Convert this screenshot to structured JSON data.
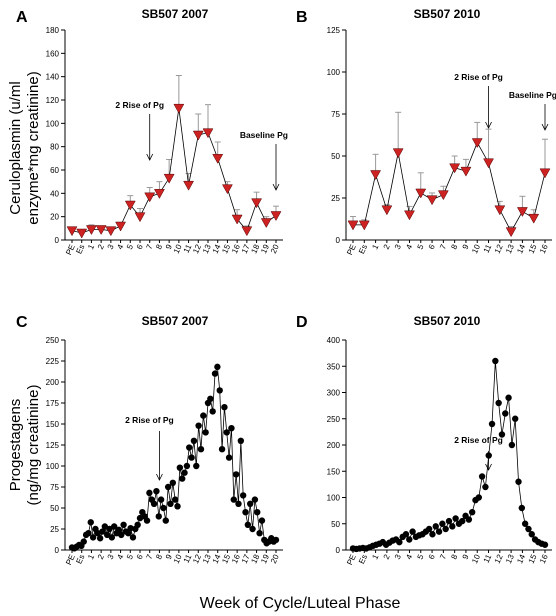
{
  "figure": {
    "ylabel_top_1": "Ceruloplasmin (u/ml",
    "ylabel_top_2": "enzyme*mg creatinine)",
    "ylabel_bottom_1": "Progestagens",
    "ylabel_bottom_2": "(ng/mg creatinine)",
    "xlabel": "Week of Cycle/Luteal Phase",
    "colors": {
      "triangle": "#cc2222",
      "point": "#000000",
      "error_bar": "#999999",
      "line": "#000000"
    }
  },
  "chart_data": [
    {
      "panel": "A",
      "type": "line",
      "title": "SB507 2007",
      "categories": [
        "PE",
        "Es",
        "1",
        "2",
        "3",
        "4",
        "5",
        "6",
        "7",
        "8",
        "9",
        "10",
        "11",
        "12",
        "13",
        "14",
        "15",
        "16",
        "17",
        "18",
        "19",
        "20"
      ],
      "values": [
        8,
        6,
        9,
        9,
        8,
        12,
        30,
        20,
        37,
        40,
        53,
        113,
        47,
        90,
        92,
        70,
        44,
        18,
        8,
        32,
        15,
        21
      ],
      "errors": [
        2,
        2,
        4,
        3,
        3,
        3,
        8,
        7,
        8,
        10,
        16,
        28,
        10,
        18,
        24,
        14,
        6,
        8,
        4,
        9,
        5,
        8
      ],
      "ylim": [
        0,
        180
      ],
      "yticks": [
        0,
        20,
        40,
        60,
        80,
        100,
        120,
        140,
        160,
        180
      ],
      "annotations": [
        {
          "text": "2 Rise of Pg",
          "x": "7"
        },
        {
          "text": "Baseline Pg",
          "x": "20"
        }
      ]
    },
    {
      "panel": "B",
      "type": "line",
      "title": "SB507 2010",
      "categories": [
        "PE",
        "Es",
        "1",
        "2",
        "3",
        "4",
        "5",
        "6",
        "7",
        "8",
        "9",
        "10",
        "11",
        "12",
        "13",
        "14",
        "15",
        "16"
      ],
      "values": [
        9,
        9,
        39,
        18,
        52,
        15,
        28,
        24,
        27,
        43,
        41,
        58,
        46,
        18,
        5,
        17,
        13,
        40
      ],
      "errors": [
        5,
        3,
        12,
        3,
        24,
        5,
        12,
        4,
        5,
        7,
        7,
        12,
        20,
        5,
        3,
        9,
        5,
        20
      ],
      "ylim": [
        0,
        125
      ],
      "yticks": [
        0,
        25,
        50,
        75,
        100,
        125
      ],
      "annotations": [
        {
          "text": "2 Rise of Pg",
          "x": "11"
        },
        {
          "text": "Baseline Pg",
          "x": "16"
        }
      ]
    },
    {
      "panel": "C",
      "type": "line",
      "title": "SB507 2007",
      "categories": [
        "PE",
        "Es",
        "1",
        "2",
        "3",
        "4",
        "5",
        "6",
        "7",
        "8",
        "9",
        "10",
        "11",
        "12",
        "13",
        "14",
        "15",
        "16",
        "17",
        "18",
        "19",
        "20"
      ],
      "series_points": [
        [
          0.0,
          3
        ],
        [
          0.3,
          2
        ],
        [
          0.6,
          4
        ],
        [
          0.9,
          6
        ],
        [
          1.2,
          5
        ],
        [
          1.5,
          10
        ],
        [
          1.8,
          18
        ],
        [
          2.1,
          20
        ],
        [
          2.4,
          33
        ],
        [
          2.7,
          15
        ],
        [
          3.0,
          25
        ],
        [
          3.3,
          20
        ],
        [
          3.6,
          14
        ],
        [
          3.9,
          22
        ],
        [
          4.2,
          28
        ],
        [
          4.5,
          18
        ],
        [
          4.8,
          25
        ],
        [
          5.1,
          15
        ],
        [
          5.4,
          28
        ],
        [
          5.7,
          20
        ],
        [
          6.0,
          24
        ],
        [
          6.3,
          18
        ],
        [
          6.6,
          30
        ],
        [
          6.9,
          22
        ],
        [
          7.2,
          20
        ],
        [
          7.5,
          26
        ],
        [
          7.8,
          15
        ],
        [
          8.1,
          25
        ],
        [
          8.4,
          30
        ],
        [
          8.7,
          38
        ],
        [
          9.0,
          45
        ],
        [
          9.3,
          40
        ],
        [
          9.6,
          35
        ],
        [
          9.9,
          68
        ],
        [
          10.2,
          60
        ],
        [
          10.5,
          55
        ],
        [
          10.8,
          70
        ],
        [
          11.1,
          40
        ],
        [
          11.4,
          60
        ],
        [
          11.7,
          50
        ],
        [
          12.0,
          35
        ],
        [
          12.3,
          75
        ],
        [
          12.6,
          55
        ],
        [
          12.9,
          80
        ],
        [
          13.2,
          60
        ],
        [
          13.5,
          52
        ],
        [
          13.8,
          98
        ],
        [
          14.1,
          85
        ],
        [
          14.4,
          92
        ],
        [
          14.7,
          100
        ],
        [
          15.0,
          122
        ],
        [
          15.3,
          110
        ],
        [
          15.6,
          130
        ],
        [
          15.9,
          100
        ],
        [
          16.2,
          148
        ],
        [
          16.5,
          120
        ],
        [
          16.8,
          160
        ],
        [
          17.1,
          140
        ],
        [
          17.4,
          175
        ],
        [
          17.7,
          180
        ],
        [
          18.0,
          165
        ],
        [
          18.3,
          210
        ],
        [
          18.6,
          218
        ],
        [
          18.9,
          190
        ],
        [
          19.2,
          120
        ],
        [
          19.5,
          170
        ],
        [
          19.8,
          140
        ],
        [
          20.1,
          110
        ],
        [
          20.4,
          145
        ],
        [
          20.7,
          60
        ],
        [
          21.0,
          90
        ],
        [
          21.3,
          55
        ],
        [
          21.6,
          130
        ],
        [
          21.9,
          65
        ],
        [
          22.2,
          45
        ],
        [
          22.5,
          30
        ],
        [
          22.8,
          55
        ],
        [
          23.1,
          25
        ],
        [
          23.4,
          60
        ],
        [
          23.7,
          45
        ],
        [
          24.0,
          20
        ],
        [
          24.3,
          35
        ],
        [
          24.6,
          12
        ],
        [
          24.9,
          8
        ],
        [
          25.2,
          10
        ],
        [
          25.5,
          14
        ],
        [
          25.8,
          10
        ],
        [
          26.1,
          12
        ]
      ],
      "ylim": [
        0,
        250
      ],
      "yticks": [
        0,
        25,
        50,
        75,
        100,
        125,
        150,
        175,
        200,
        225,
        250
      ],
      "annotations": [
        {
          "text": "2 Rise of Pg",
          "x": "8"
        }
      ]
    },
    {
      "panel": "D",
      "type": "line",
      "title": "SB507 2010",
      "categories": [
        "PE",
        "Es",
        "1",
        "2",
        "3",
        "4",
        "5",
        "6",
        "7",
        "8",
        "9",
        "10",
        "11",
        "12",
        "13",
        "14",
        "15",
        "16"
      ],
      "series_points": [
        [
          0.0,
          3
        ],
        [
          0.3,
          2
        ],
        [
          0.6,
          3
        ],
        [
          0.9,
          4
        ],
        [
          1.2,
          3
        ],
        [
          1.5,
          5
        ],
        [
          1.8,
          8
        ],
        [
          2.1,
          10
        ],
        [
          2.4,
          12
        ],
        [
          2.7,
          15
        ],
        [
          3.0,
          10
        ],
        [
          3.3,
          14
        ],
        [
          3.6,
          18
        ],
        [
          3.9,
          20
        ],
        [
          4.2,
          15
        ],
        [
          4.5,
          25
        ],
        [
          4.8,
          30
        ],
        [
          5.1,
          20
        ],
        [
          5.4,
          35
        ],
        [
          5.7,
          25
        ],
        [
          6.0,
          28
        ],
        [
          6.3,
          30
        ],
        [
          6.6,
          35
        ],
        [
          6.9,
          40
        ],
        [
          7.2,
          30
        ],
        [
          7.5,
          45
        ],
        [
          7.8,
          35
        ],
        [
          8.1,
          50
        ],
        [
          8.4,
          40
        ],
        [
          8.7,
          55
        ],
        [
          9.0,
          45
        ],
        [
          9.3,
          60
        ],
        [
          9.6,
          50
        ],
        [
          9.9,
          55
        ],
        [
          10.2,
          65
        ],
        [
          10.5,
          58
        ],
        [
          10.8,
          72
        ],
        [
          11.1,
          95
        ],
        [
          11.4,
          100
        ],
        [
          11.7,
          140
        ],
        [
          12.0,
          120
        ],
        [
          12.3,
          180
        ],
        [
          12.6,
          240
        ],
        [
          12.9,
          360
        ],
        [
          13.2,
          280
        ],
        [
          13.5,
          220
        ],
        [
          13.8,
          260
        ],
        [
          14.1,
          290
        ],
        [
          14.4,
          200
        ],
        [
          14.7,
          250
        ],
        [
          15.0,
          130
        ],
        [
          15.3,
          80
        ],
        [
          15.6,
          50
        ],
        [
          15.9,
          40
        ],
        [
          16.2,
          30
        ],
        [
          16.5,
          20
        ],
        [
          16.8,
          15
        ],
        [
          17.1,
          12
        ],
        [
          17.4,
          10
        ]
      ],
      "ylim": [
        0,
        400
      ],
      "yticks": [
        0,
        50,
        100,
        150,
        200,
        250,
        300,
        350,
        400
      ],
      "annotations": [
        {
          "text": "2 Rise of Pg",
          "x": "11"
        }
      ]
    }
  ]
}
